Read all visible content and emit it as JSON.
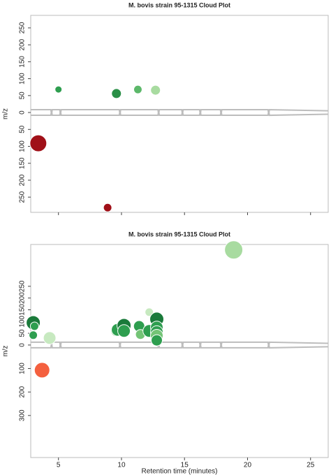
{
  "chart_data": [
    {
      "type": "bubble",
      "title": "M. bovis strain 95-1315 Cloud Plot",
      "ylabel": "m/z",
      "xlim": [
        2.8,
        26.4
      ],
      "xticks": [
        5,
        10,
        15,
        20,
        25
      ],
      "show_xtick_labels": false,
      "ylim": [
        -295,
        287
      ],
      "yticks": [
        250,
        200,
        150,
        100,
        50,
        0,
        {
          "value": -50,
          "label": "50"
        },
        {
          "value": -100,
          "label": "100"
        },
        {
          "value": -150,
          "label": "150"
        },
        {
          "value": -200,
          "label": "200"
        },
        {
          "value": -250,
          "label": "250"
        }
      ],
      "x": [
        5.0,
        9.6,
        11.3,
        12.7,
        3.4,
        8.9
      ],
      "y": [
        68,
        56,
        68,
        66,
        -91,
        -281
      ],
      "sizes": [
        5,
        7,
        6,
        7,
        12,
        6
      ],
      "colors": [
        "#2e9e4f",
        "#2a8f47",
        "#5cb86a",
        "#a8dba0",
        "#a01018",
        "#a01018"
      ]
    },
    {
      "type": "bubble",
      "title": "M. bovis strain 95-1315 Cloud Plot",
      "ylabel": "m/z",
      "xlabel": "Retention time (minutes)",
      "xlim": [
        2.8,
        26.4
      ],
      "xticks": [
        5,
        10,
        15,
        20,
        25
      ],
      "show_xtick_labels": true,
      "ylim": [
        -479,
        428
      ],
      "yticks": [
        250,
        200,
        150,
        100,
        50,
        0,
        {
          "value": -100,
          "label": "100"
        },
        {
          "value": -200,
          "label": "200"
        },
        {
          "value": -300,
          "label": "300"
        }
      ],
      "x": [
        3.0,
        3.1,
        3.0,
        4.3,
        3.7,
        9.6,
        9.7,
        10.2,
        10.2,
        11.4,
        11.5,
        12.2,
        12.2,
        12.8,
        12.8,
        12.8,
        12.8,
        12.8,
        18.9
      ],
      "y": [
        95,
        80,
        42,
        30,
        -107,
        60,
        65,
        83,
        60,
        80,
        45,
        60,
        140,
        110,
        75,
        55,
        40,
        20,
        405
      ],
      "sizes": [
        10,
        6,
        6,
        9,
        11,
        8,
        9,
        10,
        9,
        8,
        7,
        9,
        6,
        10,
        9,
        9,
        9,
        8,
        13
      ],
      "colors": [
        "#1a7a3a",
        "#2e9e4f",
        "#2e9e4f",
        "#c7e9c0",
        "#f4603f",
        "#74c476",
        "#2e9e4f",
        "#1a7a3a",
        "#2e9e4f",
        "#2e9e4f",
        "#74c476",
        "#2e9e4f",
        "#c7e9c0",
        "#1a7a3a",
        "#2e9e4f",
        "#2e9e4f",
        "#74c476",
        "#2e9e4f",
        "#a8dba0"
      ]
    }
  ]
}
